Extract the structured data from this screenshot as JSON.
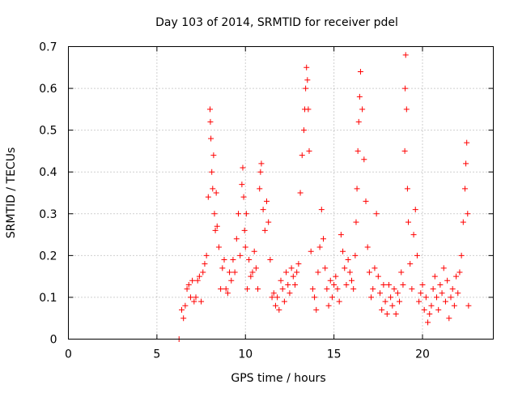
{
  "colors": {
    "series": "#ff0000",
    "axis": "#000000",
    "grid": "#a0a0a0",
    "background": "#ffffff"
  },
  "chart_data": {
    "type": "scatter",
    "title": "Day 103 of 2014, SRMTID for receiver pdel",
    "xlabel": "GPS time / hours",
    "ylabel": "SRMTID / TECUs",
    "xlim": [
      0,
      24
    ],
    "ylim": [
      0,
      0.7
    ],
    "xticks": [
      0,
      5,
      10,
      15,
      20
    ],
    "yticks": [
      0,
      0.1,
      0.2,
      0.3,
      0.4,
      0.5,
      0.6,
      0.7
    ],
    "grid": true,
    "legend": "none",
    "marker": "plus",
    "series": [
      {
        "name": "SRMTID",
        "x": [
          6.25,
          6.4,
          6.5,
          6.6,
          6.7,
          6.8,
          6.9,
          7.0,
          7.1,
          7.2,
          7.3,
          7.4,
          7.5,
          7.6,
          7.7,
          7.8,
          7.9,
          8.0,
          8.02,
          8.05,
          8.1,
          8.15,
          8.2,
          8.25,
          8.3,
          8.35,
          8.4,
          8.5,
          8.6,
          8.7,
          8.8,
          8.9,
          9.0,
          9.1,
          9.2,
          9.3,
          9.4,
          9.5,
          9.6,
          9.7,
          9.8,
          9.85,
          9.9,
          9.95,
          10.0,
          10.05,
          10.1,
          10.2,
          10.3,
          10.4,
          10.5,
          10.6,
          10.7,
          10.8,
          10.85,
          10.9,
          11.0,
          11.1,
          11.2,
          11.3,
          11.4,
          11.5,
          11.6,
          11.7,
          11.8,
          11.9,
          12.0,
          12.1,
          12.2,
          12.3,
          12.4,
          12.5,
          12.6,
          12.7,
          12.8,
          12.9,
          13.0,
          13.1,
          13.2,
          13.3,
          13.35,
          13.4,
          13.45,
          13.5,
          13.55,
          13.6,
          13.7,
          13.8,
          13.9,
          14.0,
          14.1,
          14.2,
          14.3,
          14.4,
          14.5,
          14.6,
          14.7,
          14.8,
          14.9,
          15.0,
          15.1,
          15.2,
          15.3,
          15.4,
          15.5,
          15.6,
          15.7,
          15.8,
          15.9,
          16.0,
          16.1,
          16.2,
          16.25,
          16.3,
          16.35,
          16.4,
          16.45,
          16.5,
          16.6,
          16.7,
          16.8,
          16.9,
          17.0,
          17.1,
          17.2,
          17.3,
          17.4,
          17.5,
          17.6,
          17.7,
          17.8,
          17.9,
          18.0,
          18.1,
          18.2,
          18.3,
          18.4,
          18.5,
          18.6,
          18.7,
          18.8,
          18.9,
          19.0,
          19.02,
          19.05,
          19.1,
          19.15,
          19.2,
          19.3,
          19.4,
          19.5,
          19.6,
          19.7,
          19.8,
          19.9,
          20.0,
          20.1,
          20.2,
          20.3,
          20.4,
          20.5,
          20.6,
          20.7,
          20.8,
          20.9,
          21.0,
          21.1,
          21.2,
          21.3,
          21.4,
          21.5,
          21.6,
          21.7,
          21.8,
          21.9,
          22.0,
          22.1,
          22.2,
          22.3,
          22.4,
          22.45,
          22.5,
          22.55,
          22.6
        ],
        "y": [
          0.0,
          0.07,
          0.05,
          0.08,
          0.12,
          0.13,
          0.1,
          0.14,
          0.09,
          0.1,
          0.14,
          0.15,
          0.09,
          0.16,
          0.18,
          0.2,
          0.34,
          0.55,
          0.52,
          0.48,
          0.4,
          0.36,
          0.44,
          0.3,
          0.26,
          0.35,
          0.27,
          0.22,
          0.12,
          0.17,
          0.19,
          0.12,
          0.11,
          0.16,
          0.14,
          0.19,
          0.16,
          0.24,
          0.3,
          0.2,
          0.37,
          0.41,
          0.34,
          0.26,
          0.22,
          0.3,
          0.12,
          0.19,
          0.15,
          0.16,
          0.21,
          0.17,
          0.12,
          0.36,
          0.4,
          0.42,
          0.31,
          0.26,
          0.33,
          0.28,
          0.19,
          0.1,
          0.11,
          0.08,
          0.1,
          0.07,
          0.14,
          0.12,
          0.09,
          0.16,
          0.13,
          0.11,
          0.17,
          0.15,
          0.13,
          0.16,
          0.18,
          0.35,
          0.44,
          0.5,
          0.55,
          0.6,
          0.65,
          0.62,
          0.55,
          0.45,
          0.21,
          0.12,
          0.1,
          0.07,
          0.16,
          0.22,
          0.31,
          0.24,
          0.17,
          0.12,
          0.08,
          0.14,
          0.1,
          0.13,
          0.15,
          0.12,
          0.09,
          0.25,
          0.21,
          0.17,
          0.13,
          0.19,
          0.16,
          0.14,
          0.12,
          0.2,
          0.28,
          0.36,
          0.45,
          0.52,
          0.58,
          0.64,
          0.55,
          0.43,
          0.33,
          0.22,
          0.16,
          0.1,
          0.12,
          0.17,
          0.3,
          0.15,
          0.11,
          0.07,
          0.13,
          0.09,
          0.06,
          0.13,
          0.1,
          0.08,
          0.12,
          0.06,
          0.11,
          0.09,
          0.16,
          0.13,
          0.45,
          0.6,
          0.68,
          0.55,
          0.36,
          0.28,
          0.18,
          0.12,
          0.25,
          0.31,
          0.2,
          0.09,
          0.11,
          0.13,
          0.07,
          0.1,
          0.04,
          0.06,
          0.08,
          0.12,
          0.15,
          0.1,
          0.07,
          0.13,
          0.11,
          0.17,
          0.09,
          0.14,
          0.05,
          0.1,
          0.12,
          0.08,
          0.15,
          0.11,
          0.16,
          0.2,
          0.28,
          0.36,
          0.42,
          0.47,
          0.3,
          0.08
        ]
      }
    ]
  }
}
